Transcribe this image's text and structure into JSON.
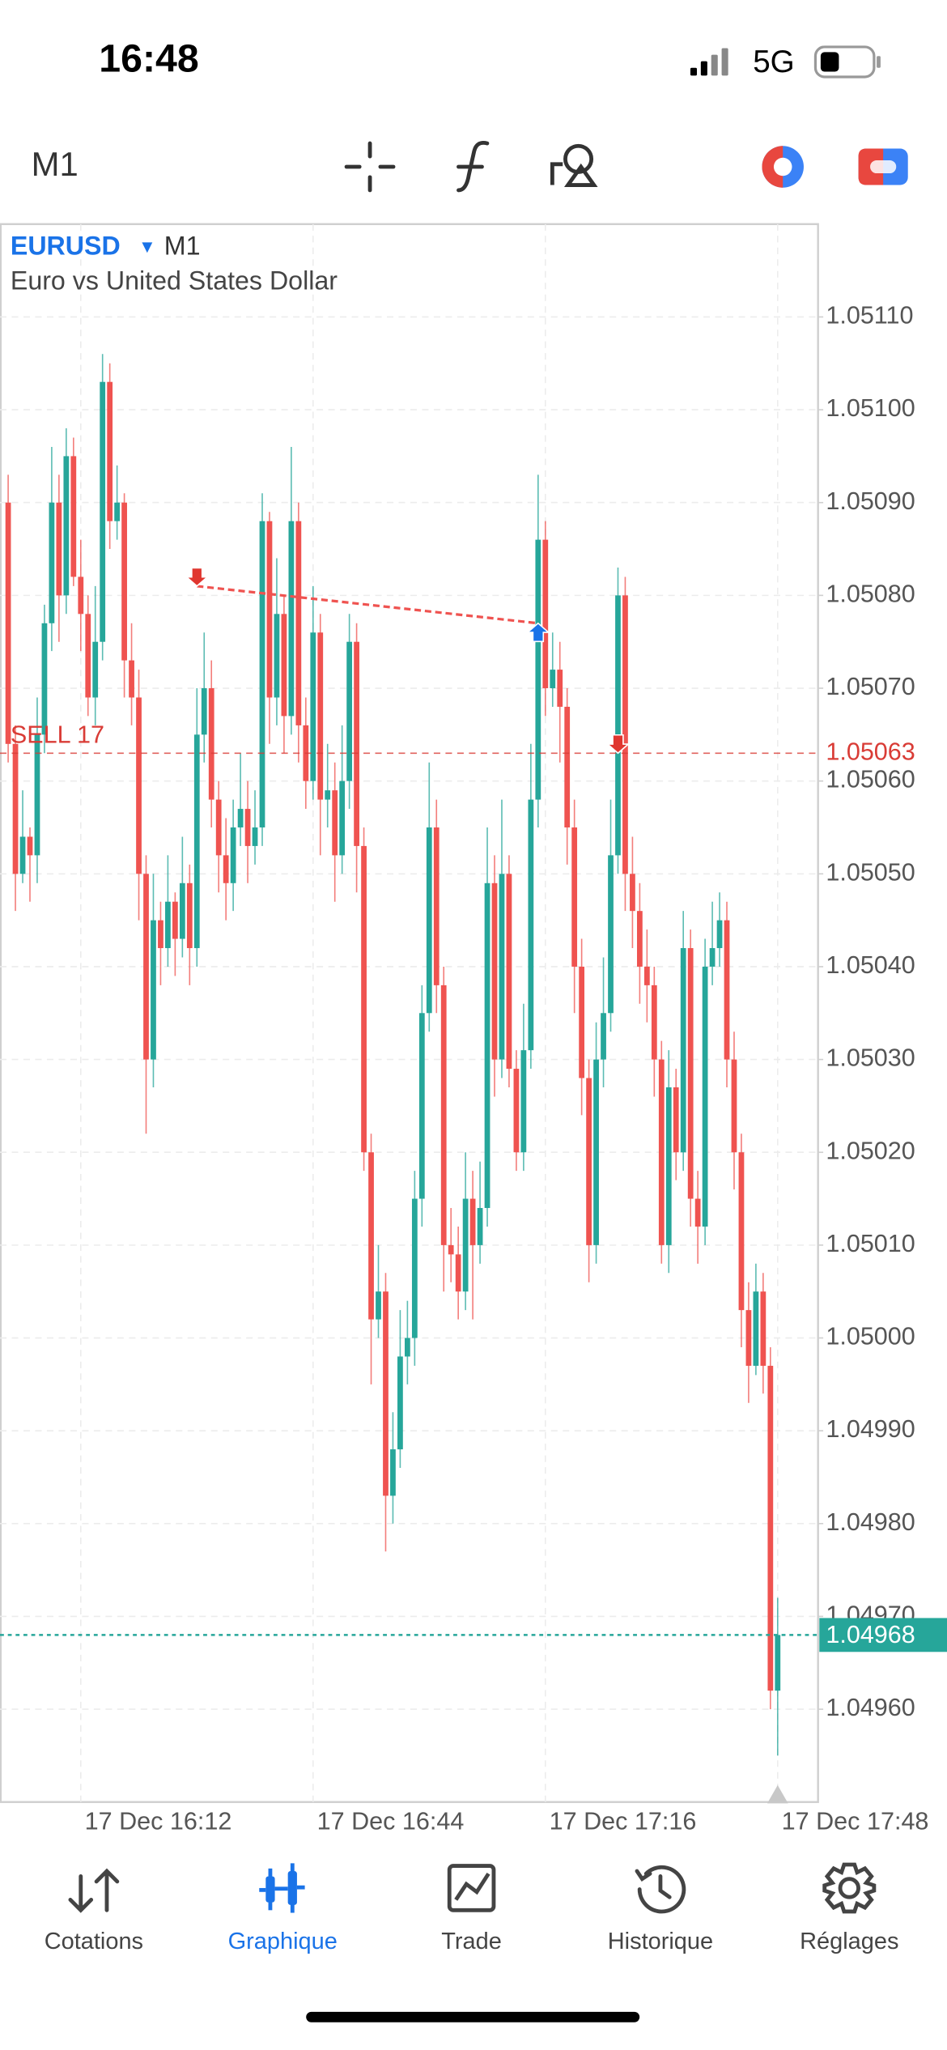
{
  "status_bar": {
    "time": "16:48",
    "network": "5G"
  },
  "toolbar": {
    "timeframe": "M1"
  },
  "chart_data": {
    "type": "candlestick",
    "symbol": "EURUSD",
    "timeframe": "M1",
    "description": "Euro vs United States Dollar",
    "up_color": "#26a69a",
    "down_color": "#ef5350",
    "grid": true,
    "ylim": [
      1.0495,
      1.0512
    ],
    "yticks": [
      {
        "value": 1.0496,
        "label": "1.04960"
      },
      {
        "value": 1.0497,
        "label": "1.04970"
      },
      {
        "value": 1.0498,
        "label": "1.04980"
      },
      {
        "value": 1.0499,
        "label": "1.04990"
      },
      {
        "value": 1.05,
        "label": "1.05000"
      },
      {
        "value": 1.0501,
        "label": "1.05010"
      },
      {
        "value": 1.0502,
        "label": "1.05020"
      },
      {
        "value": 1.0503,
        "label": "1.05030"
      },
      {
        "value": 1.0504,
        "label": "1.05040"
      },
      {
        "value": 1.0505,
        "label": "1.05050"
      },
      {
        "value": 1.0506,
        "label": "1.05060"
      },
      {
        "value": 1.0507,
        "label": "1.05070"
      },
      {
        "value": 1.0508,
        "label": "1.05080"
      },
      {
        "value": 1.0509,
        "label": "1.05090"
      },
      {
        "value": 1.051,
        "label": "1.05100"
      },
      {
        "value": 1.0511,
        "label": "1.05110"
      }
    ],
    "categories": [
      null,
      null,
      null,
      null,
      null,
      null,
      null,
      null,
      null,
      null,
      "17 Dec 16:12",
      null,
      null,
      null,
      null,
      null,
      null,
      null,
      null,
      null,
      null,
      null,
      null,
      null,
      null,
      null,
      null,
      null,
      null,
      null,
      null,
      null,
      null,
      null,
      null,
      null,
      null,
      null,
      null,
      null,
      null,
      null,
      "17 Dec 16:44",
      null,
      null,
      null,
      null,
      null,
      null,
      null,
      null,
      null,
      null,
      null,
      null,
      null,
      null,
      null,
      null,
      null,
      null,
      null,
      null,
      null,
      null,
      null,
      null,
      null,
      null,
      null,
      null,
      null,
      null,
      null,
      "17 Dec 17:16",
      null,
      null,
      null,
      null,
      null,
      null,
      null,
      null,
      null,
      null,
      null,
      null,
      null,
      null,
      null,
      null,
      null,
      null,
      null,
      null,
      null,
      null,
      null,
      null,
      null,
      null,
      null,
      null,
      null,
      null,
      null,
      "17 Dec 17:48"
    ],
    "ohlc": [
      [
        1.0509,
        1.05093,
        1.05062,
        1.05064
      ],
      [
        1.05064,
        1.05066,
        1.05046,
        1.0505
      ],
      [
        1.0505,
        1.05059,
        1.05049,
        1.05054
      ],
      [
        1.05054,
        1.05055,
        1.05047,
        1.05052
      ],
      [
        1.05052,
        1.05069,
        1.05049,
        1.05065
      ],
      [
        1.05065,
        1.05079,
        1.05063,
        1.05077
      ],
      [
        1.05077,
        1.05096,
        1.05074,
        1.0509
      ],
      [
        1.0509,
        1.05093,
        1.05075,
        1.0508
      ],
      [
        1.0508,
        1.05098,
        1.05078,
        1.05095
      ],
      [
        1.05095,
        1.05097,
        1.05081,
        1.05082
      ],
      [
        1.05082,
        1.05086,
        1.05074,
        1.05078
      ],
      [
        1.05078,
        1.0508,
        1.05067,
        1.05069
      ],
      [
        1.05069,
        1.05081,
        1.05066,
        1.05075
      ],
      [
        1.05075,
        1.05106,
        1.05073,
        1.05103
      ],
      [
        1.05103,
        1.05105,
        1.05085,
        1.05088
      ],
      [
        1.05088,
        1.05094,
        1.05086,
        1.0509
      ],
      [
        1.0509,
        1.05091,
        1.05069,
        1.05073
      ],
      [
        1.05073,
        1.05077,
        1.05066,
        1.05069
      ],
      [
        1.05069,
        1.05072,
        1.05045,
        1.0505
      ],
      [
        1.0505,
        1.05052,
        1.05022,
        1.0503
      ],
      [
        1.0503,
        1.0505,
        1.05027,
        1.05045
      ],
      [
        1.05045,
        1.05047,
        1.05038,
        1.05042
      ],
      [
        1.05042,
        1.05052,
        1.0504,
        1.05047
      ],
      [
        1.05047,
        1.05048,
        1.05039,
        1.05043
      ],
      [
        1.05043,
        1.05054,
        1.05041,
        1.05049
      ],
      [
        1.05049,
        1.05051,
        1.05038,
        1.05042
      ],
      [
        1.05042,
        1.0507,
        1.0504,
        1.05065
      ],
      [
        1.05065,
        1.05076,
        1.05062,
        1.0507
      ],
      [
        1.0507,
        1.05073,
        1.05055,
        1.05058
      ],
      [
        1.05058,
        1.0506,
        1.05048,
        1.05052
      ],
      [
        1.05052,
        1.05056,
        1.05045,
        1.05049
      ],
      [
        1.05049,
        1.05058,
        1.05046,
        1.05055
      ],
      [
        1.05055,
        1.05063,
        1.05053,
        1.05057
      ],
      [
        1.05057,
        1.0506,
        1.05049,
        1.05053
      ],
      [
        1.05053,
        1.05059,
        1.05051,
        1.05055
      ],
      [
        1.05055,
        1.05091,
        1.05053,
        1.05088
      ],
      [
        1.05088,
        1.05089,
        1.05064,
        1.05069
      ],
      [
        1.05069,
        1.05084,
        1.05066,
        1.05078
      ],
      [
        1.05078,
        1.0508,
        1.05063,
        1.05067
      ],
      [
        1.05067,
        1.05096,
        1.05065,
        1.05088
      ],
      [
        1.05088,
        1.0509,
        1.05062,
        1.05066
      ],
      [
        1.05066,
        1.05069,
        1.05057,
        1.0506
      ],
      [
        1.0506,
        1.05081,
        1.05058,
        1.05076
      ],
      [
        1.05076,
        1.05078,
        1.05052,
        1.05058
      ],
      [
        1.05058,
        1.05064,
        1.05055,
        1.05059
      ],
      [
        1.05059,
        1.05062,
        1.05047,
        1.05052
      ],
      [
        1.05052,
        1.05066,
        1.0505,
        1.0506
      ],
      [
        1.0506,
        1.05078,
        1.05057,
        1.05075
      ],
      [
        1.05075,
        1.05077,
        1.05048,
        1.05053
      ],
      [
        1.05053,
        1.05055,
        1.05018,
        1.0502
      ],
      [
        1.0502,
        1.05022,
        1.04995,
        1.05002
      ],
      [
        1.05002,
        1.0501,
        1.05,
        1.05005
      ],
      [
        1.05005,
        1.05007,
        1.04977,
        1.04983
      ],
      [
        1.04983,
        1.04992,
        1.0498,
        1.04988
      ],
      [
        1.04988,
        1.05003,
        1.04986,
        1.04998
      ],
      [
        1.04998,
        1.05004,
        1.04995,
        1.05
      ],
      [
        1.05,
        1.05018,
        1.04997,
        1.05015
      ],
      [
        1.05015,
        1.05038,
        1.05012,
        1.05035
      ],
      [
        1.05035,
        1.05062,
        1.05033,
        1.05055
      ],
      [
        1.05055,
        1.05058,
        1.05035,
        1.05038
      ],
      [
        1.05038,
        1.0504,
        1.05005,
        1.0501
      ],
      [
        1.0501,
        1.05014,
        1.05006,
        1.05009
      ],
      [
        1.05009,
        1.05012,
        1.05002,
        1.05005
      ],
      [
        1.05005,
        1.0502,
        1.05003,
        1.05015
      ],
      [
        1.05015,
        1.05018,
        1.05002,
        1.0501
      ],
      [
        1.0501,
        1.05019,
        1.05008,
        1.05014
      ],
      [
        1.05014,
        1.05055,
        1.05012,
        1.05049
      ],
      [
        1.05049,
        1.05052,
        1.05026,
        1.0503
      ],
      [
        1.0503,
        1.05058,
        1.05028,
        1.0505
      ],
      [
        1.0505,
        1.05052,
        1.05027,
        1.05029
      ],
      [
        1.05029,
        1.05031,
        1.05018,
        1.0502
      ],
      [
        1.0502,
        1.05036,
        1.05018,
        1.05031
      ],
      [
        1.05031,
        1.05064,
        1.05029,
        1.05058
      ],
      [
        1.05058,
        1.05093,
        1.05055,
        1.05086
      ],
      [
        1.05086,
        1.05088,
        1.05067,
        1.0507
      ],
      [
        1.0507,
        1.05076,
        1.05068,
        1.05072
      ],
      [
        1.05072,
        1.05075,
        1.05062,
        1.05068
      ],
      [
        1.05068,
        1.0507,
        1.05051,
        1.05055
      ],
      [
        1.05055,
        1.05058,
        1.05035,
        1.0504
      ],
      [
        1.0504,
        1.05043,
        1.05024,
        1.05028
      ],
      [
        1.05028,
        1.0503,
        1.05006,
        1.0501
      ],
      [
        1.0501,
        1.05034,
        1.05008,
        1.0503
      ],
      [
        1.0503,
        1.05041,
        1.05027,
        1.05035
      ],
      [
        1.05035,
        1.05058,
        1.05033,
        1.05052
      ],
      [
        1.05052,
        1.05083,
        1.0505,
        1.0508
      ],
      [
        1.0508,
        1.05082,
        1.05046,
        1.0505
      ],
      [
        1.0505,
        1.05054,
        1.05042,
        1.05046
      ],
      [
        1.05046,
        1.05049,
        1.05036,
        1.0504
      ],
      [
        1.0504,
        1.05044,
        1.05034,
        1.05038
      ],
      [
        1.05038,
        1.0504,
        1.05026,
        1.0503
      ],
      [
        1.0503,
        1.05032,
        1.05008,
        1.0501
      ],
      [
        1.0501,
        1.05031,
        1.05007,
        1.05027
      ],
      [
        1.05027,
        1.05029,
        1.05017,
        1.0502
      ],
      [
        1.0502,
        1.05046,
        1.05018,
        1.05042
      ],
      [
        1.05042,
        1.05044,
        1.05012,
        1.05015
      ],
      [
        1.05015,
        1.05018,
        1.05008,
        1.05012
      ],
      [
        1.05012,
        1.05043,
        1.0501,
        1.0504
      ],
      [
        1.0504,
        1.05047,
        1.05038,
        1.05042
      ],
      [
        1.05042,
        1.05048,
        1.0504,
        1.05045
      ],
      [
        1.05045,
        1.05047,
        1.05027,
        1.0503
      ],
      [
        1.0503,
        1.05033,
        1.05016,
        1.0502
      ],
      [
        1.0502,
        1.05022,
        1.04999,
        1.05003
      ],
      [
        1.05003,
        1.05006,
        1.04993,
        1.04997
      ],
      [
        1.04997,
        1.05008,
        1.04996,
        1.05005
      ],
      [
        1.05005,
        1.05007,
        1.04994,
        1.04997
      ],
      [
        1.04997,
        1.04999,
        1.0496,
        1.04962
      ],
      [
        1.04962,
        1.04972,
        1.04955,
        1.04968
      ]
    ],
    "position": {
      "label": "SELL 17",
      "price": 1.05063,
      "color": "#d93c36"
    },
    "bid": {
      "value": 1.04968,
      "color": "#26a69a"
    },
    "trades": [
      {
        "side": "sell",
        "x": 26,
        "price": 1.05081
      },
      {
        "side": "buy",
        "x": 73,
        "price": 1.05077
      },
      {
        "side": "sell",
        "x": 84,
        "price": 1.05063
      }
    ]
  },
  "nav": [
    {
      "label": "Cotations"
    },
    {
      "label": "Graphique"
    },
    {
      "label": "Trade"
    },
    {
      "label": "Historique"
    },
    {
      "label": "Réglages"
    }
  ]
}
